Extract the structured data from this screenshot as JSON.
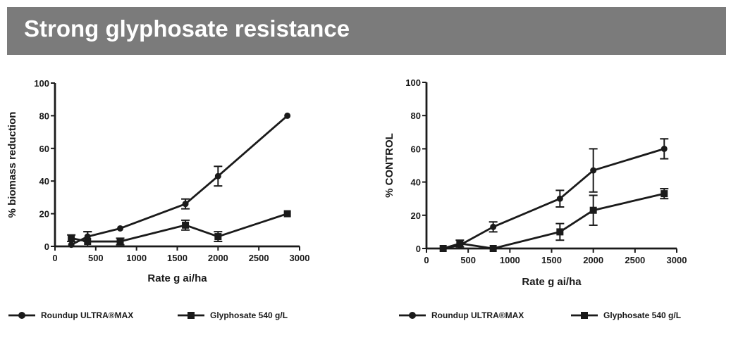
{
  "banner": {
    "title": "Strong glyphosate resistance"
  },
  "chart_data": [
    {
      "type": "line",
      "xlabel": "Rate g ai/ha",
      "ylabel": "% biomass reduction",
      "xlim": [
        0,
        3000
      ],
      "ylim": [
        0,
        100
      ],
      "xticks": [
        0,
        500,
        1000,
        1500,
        2000,
        2500,
        3000
      ],
      "yticks": [
        0,
        20,
        40,
        60,
        80,
        100
      ],
      "grid": false,
      "legend": "bottom",
      "series": [
        {
          "name": "Roundup ULTRA®MAX",
          "marker": "circle",
          "x": [
            200,
            400,
            800,
            1600,
            2000,
            2850
          ],
          "y": [
            1,
            6,
            11,
            26,
            43,
            80
          ],
          "err": [
            0,
            3,
            0,
            3,
            6,
            0
          ]
        },
        {
          "name": "Glyphosate 540 g/L",
          "marker": "square",
          "x": [
            200,
            400,
            800,
            1600,
            2000,
            2850
          ],
          "y": [
            5,
            3,
            3,
            13,
            6,
            20
          ],
          "err": [
            2,
            6,
            2,
            3,
            3,
            0
          ]
        }
      ]
    },
    {
      "type": "line",
      "xlabel": "Rate g ai/ha",
      "ylabel": "% CONTROL",
      "xlim": [
        0,
        3000
      ],
      "ylim": [
        0,
        100
      ],
      "xticks": [
        0,
        500,
        1000,
        1500,
        2000,
        2500,
        3000
      ],
      "yticks": [
        0,
        20,
        40,
        60,
        80,
        100
      ],
      "grid": false,
      "legend": "bottom",
      "series": [
        {
          "name": "Roundup ULTRA®MAX",
          "marker": "circle",
          "x": [
            200,
            400,
            800,
            1600,
            2000,
            2850
          ],
          "y": [
            0,
            2,
            13,
            30,
            47,
            60
          ],
          "err": [
            0,
            0,
            3,
            5,
            13,
            6
          ]
        },
        {
          "name": "Glyphosate 540 g/L",
          "marker": "square",
          "x": [
            200,
            400,
            800,
            1600,
            2000,
            2850
          ],
          "y": [
            0,
            3,
            0,
            10,
            23,
            33
          ],
          "err": [
            0,
            2,
            0,
            5,
            9,
            3
          ]
        }
      ]
    }
  ]
}
